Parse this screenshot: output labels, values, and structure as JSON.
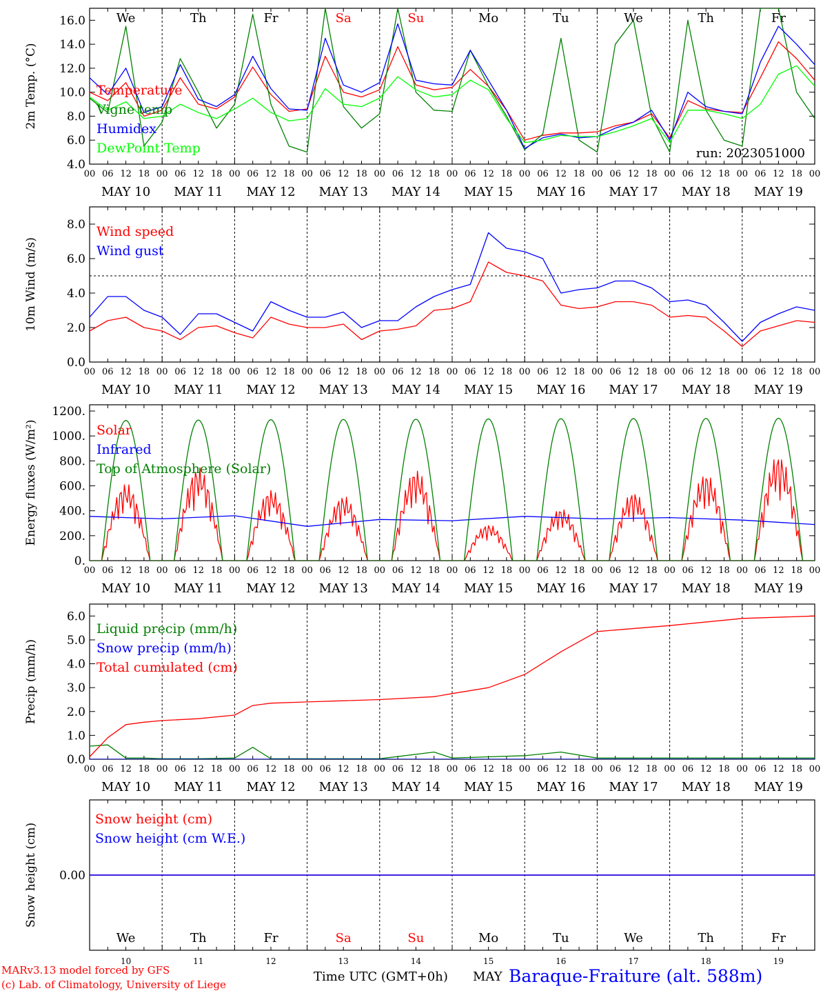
{
  "run_label": "run: 2023051000",
  "days": [
    "We",
    "Th",
    "Fr",
    "Sa",
    "Su",
    "Mo",
    "Tu",
    "We",
    "Th",
    "Fr"
  ],
  "weekend_days": [
    3,
    4
  ],
  "dates": [
    "MAY 10",
    "MAY 11",
    "MAY 12",
    "MAY 13",
    "MAY 14",
    "MAY 15",
    "MAY 16",
    "MAY 17",
    "MAY 18",
    "MAY 19"
  ],
  "day_numbers": [
    "10",
    "11",
    "12",
    "13",
    "14",
    "15",
    "16",
    "17",
    "18",
    "19"
  ],
  "hour_ticks": [
    "00",
    "06",
    "12",
    "18"
  ],
  "hour_tick_end": "00",
  "colors": {
    "red": "#ff0000",
    "green": "#008000",
    "blue": "#0000ff",
    "lime": "#00ff00",
    "purple": "#800080"
  },
  "footer": {
    "model": "MARv3.13 model forced by GFS",
    "lab": "(c) Lab. of Climatology, University of Liege",
    "time_label": "Time UTC (GMT+0h)",
    "month": "MAY",
    "station": "Baraque-Fraiture (alt. 588m)"
  },
  "chart_data": [
    {
      "type": "line",
      "ylabel": "2m Temp. (°C)",
      "ylim": [
        4,
        17
      ],
      "yticks": [
        "4.0",
        "6.0",
        "8.0",
        "10.0",
        "12.0",
        "14.0",
        "16.0"
      ],
      "x": [
        0,
        6,
        12,
        18,
        24,
        30,
        36,
        42,
        48,
        54,
        60,
        66,
        72,
        78,
        84,
        90,
        96,
        102,
        108,
        114,
        120,
        126,
        132,
        138,
        144,
        150,
        156,
        162,
        168,
        174,
        180,
        186,
        192,
        198,
        204,
        210,
        216,
        222,
        228,
        234,
        240
      ],
      "series": [
        {
          "name": "Temperature",
          "color": "red",
          "values": [
            10.0,
            9.3,
            10.8,
            8.0,
            8.5,
            11.2,
            9.0,
            8.6,
            9.6,
            12.1,
            9.8,
            8.4,
            8.6,
            13.0,
            10.0,
            9.6,
            10.2,
            13.8,
            10.6,
            10.2,
            10.4,
            11.9,
            10.5,
            8.5,
            6.0,
            6.4,
            6.6,
            6.6,
            6.7,
            7.2,
            7.5,
            8.2,
            6.2,
            9.3,
            8.6,
            8.4,
            8.3,
            11.2,
            14.2,
            12.8,
            11.0
          ]
        },
        {
          "name": "Vigne temp",
          "color": "green",
          "values": [
            9.5,
            8.3,
            15.5,
            5.5,
            7.5,
            12.8,
            10.0,
            7.0,
            9.0,
            16.5,
            9.0,
            5.5,
            5.0,
            17.0,
            8.8,
            7.0,
            8.2,
            17.0,
            10.0,
            8.5,
            8.4,
            13.5,
            10.5,
            8.0,
            5.2,
            6.5,
            14.5,
            6.0,
            5.0,
            14.0,
            16.0,
            8.0,
            5.0,
            16.0,
            8.5,
            6.0,
            5.5,
            17.0,
            17.0,
            10.0,
            7.8
          ]
        },
        {
          "name": "Humidex",
          "color": "blue",
          "values": [
            11.2,
            9.8,
            12.0,
            8.3,
            8.8,
            12.3,
            9.4,
            8.8,
            9.8,
            13.0,
            10.3,
            8.6,
            8.5,
            14.5,
            10.6,
            10.0,
            10.8,
            15.7,
            11.0,
            10.7,
            10.6,
            13.5,
            11.0,
            8.5,
            5.3,
            6.2,
            6.5,
            6.2,
            6.3,
            7.0,
            7.5,
            8.5,
            6.0,
            10.0,
            8.8,
            8.4,
            8.2,
            12.5,
            15.5,
            14.0,
            12.3
          ]
        },
        {
          "name": "DewPoint Temp",
          "color": "lime",
          "values": [
            9.6,
            8.5,
            9.2,
            7.8,
            8.0,
            9.0,
            8.3,
            7.8,
            8.6,
            9.5,
            8.3,
            7.6,
            7.8,
            10.3,
            9.0,
            8.8,
            9.5,
            11.3,
            10.2,
            9.6,
            9.8,
            11.0,
            10.2,
            7.8,
            5.8,
            6.0,
            6.4,
            6.3,
            6.3,
            6.7,
            7.2,
            7.8,
            5.8,
            8.5,
            8.5,
            8.2,
            7.8,
            9.0,
            11.5,
            12.2,
            10.5
          ]
        }
      ]
    },
    {
      "type": "line",
      "ylabel": "10m Wind (m/s)",
      "ylim": [
        0,
        9
      ],
      "yticks": [
        "0.0",
        "2.0",
        "4.0",
        "6.0",
        "8.0"
      ],
      "reference_line": 5,
      "x": [
        0,
        6,
        12,
        18,
        24,
        30,
        36,
        42,
        48,
        54,
        60,
        66,
        72,
        78,
        84,
        90,
        96,
        102,
        108,
        114,
        120,
        126,
        132,
        138,
        144,
        150,
        156,
        162,
        168,
        174,
        180,
        186,
        192,
        198,
        204,
        210,
        216,
        222,
        228,
        234,
        240
      ],
      "series": [
        {
          "name": "Wind speed",
          "color": "red",
          "values": [
            1.8,
            2.4,
            2.6,
            2.0,
            1.8,
            1.3,
            2.0,
            2.1,
            1.7,
            1.4,
            2.6,
            2.2,
            2.0,
            2.0,
            2.2,
            1.3,
            1.8,
            1.9,
            2.1,
            3.0,
            3.1,
            3.5,
            5.8,
            5.2,
            5.0,
            4.7,
            3.3,
            3.1,
            3.2,
            3.5,
            3.5,
            3.3,
            2.6,
            2.7,
            2.6,
            1.8,
            0.9,
            1.8,
            2.1,
            2.4,
            2.3
          ]
        },
        {
          "name": "Wind gust",
          "color": "blue",
          "values": [
            2.6,
            3.8,
            3.8,
            3.0,
            2.6,
            1.6,
            2.8,
            2.8,
            2.3,
            1.8,
            3.5,
            3.0,
            2.6,
            2.6,
            2.9,
            2.0,
            2.4,
            2.4,
            3.2,
            3.8,
            4.2,
            4.5,
            7.5,
            6.6,
            6.4,
            6.0,
            4.0,
            4.2,
            4.3,
            4.7,
            4.7,
            4.3,
            3.5,
            3.6,
            3.3,
            2.3,
            1.2,
            2.3,
            2.8,
            3.2,
            3.0
          ]
        }
      ]
    },
    {
      "type": "line",
      "ylabel": "Energy fluxes (W/m²)",
      "ylim": [
        0,
        1250
      ],
      "yticks": [
        "0.",
        "200.",
        "400.",
        "600.",
        "800.",
        "1000.",
        "1200."
      ],
      "x": [
        0,
        24,
        48,
        72,
        96,
        120,
        144,
        168,
        192,
        216,
        240
      ],
      "series": [
        {
          "name": "Solar",
          "color": "red",
          "daily_peaks": [
            620,
            750,
            570,
            520,
            730,
            290,
            420,
            550,
            700,
            850
          ]
        },
        {
          "name": "Infrared",
          "color": "blue",
          "values": [
            355,
            335,
            360,
            275,
            330,
            320,
            355,
            335,
            345,
            325,
            290
          ]
        },
        {
          "name": "Top of Atmosphere (Solar)",
          "color": "green",
          "daily_peaks": [
            1125,
            1128,
            1131,
            1133,
            1135,
            1137,
            1139,
            1140,
            1141,
            1142
          ]
        }
      ]
    },
    {
      "type": "line",
      "ylabel": "Precip (mm/h)",
      "ylim": [
        0,
        6.5
      ],
      "yticks": [
        "0.0",
        "1.0",
        "2.0",
        "3.0",
        "4.0",
        "5.0",
        "6.0"
      ],
      "x": [
        0,
        6,
        12,
        18,
        24,
        36,
        48,
        54,
        60,
        72,
        84,
        96,
        114,
        120,
        132,
        144,
        156,
        168,
        192,
        216,
        240
      ],
      "series": [
        {
          "name": "Liquid precip (mm/h)",
          "color": "green",
          "values": [
            0.55,
            0.6,
            0.05,
            0.05,
            0.02,
            0.02,
            0.05,
            0.5,
            0.02,
            0.02,
            0.02,
            0.02,
            0.3,
            0.05,
            0.1,
            0.15,
            0.3,
            0.05,
            0.05,
            0.05,
            0.05
          ]
        },
        {
          "name": "Snow precip (mm/h)",
          "color": "blue",
          "values": [
            0,
            0,
            0,
            0,
            0,
            0,
            0,
            0,
            0,
            0,
            0,
            0,
            0,
            0,
            0,
            0,
            0,
            0,
            0,
            0,
            0
          ]
        },
        {
          "name": "Total cumulated (cm)",
          "color": "red",
          "values": [
            0.1,
            0.9,
            1.45,
            1.55,
            1.62,
            1.7,
            1.85,
            2.25,
            2.35,
            2.4,
            2.45,
            2.5,
            2.62,
            2.75,
            3.0,
            3.55,
            4.5,
            5.35,
            5.6,
            5.9,
            6.0
          ]
        }
      ]
    },
    {
      "type": "line",
      "ylabel": "Snow height (cm)",
      "ylim": [
        -1,
        1
      ],
      "yticks": [
        "0.00"
      ],
      "x": [
        0,
        240
      ],
      "series": [
        {
          "name": "Snow height (cm)",
          "color": "red",
          "values": [
            0,
            0
          ]
        },
        {
          "name": "Snow height (cm W.E.)",
          "color": "blue",
          "values": [
            0,
            0
          ]
        }
      ]
    }
  ]
}
